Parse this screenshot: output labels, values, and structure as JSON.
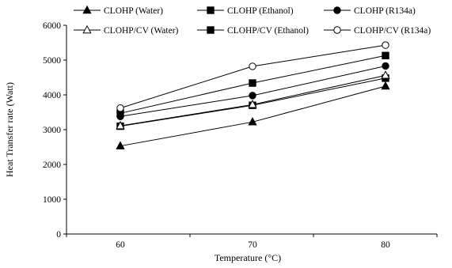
{
  "chart_data": {
    "type": "line",
    "title": "",
    "xlabel": "Temperature (°C)",
    "ylabel": "Heat Transfer rate (Watt)",
    "categories": [
      "60",
      "70",
      "80"
    ],
    "x": [
      60,
      70,
      80
    ],
    "ylim": [
      0,
      6000
    ],
    "yticks": [
      "0",
      "1000",
      "2000",
      "3000",
      "4000",
      "5000",
      "6000"
    ],
    "grid": false,
    "legend_position": "top",
    "series": [
      {
        "name": "CLOHP (Water)",
        "marker": "filled-triangle",
        "values": [
          2530,
          3220,
          4250
        ]
      },
      {
        "name": "CLOHP (Ethanol)",
        "marker": "filled-square",
        "values": [
          3100,
          3700,
          4480
        ]
      },
      {
        "name": "CLOHP (R134a)",
        "marker": "filled-circle",
        "values": [
          3380,
          3980,
          4830
        ]
      },
      {
        "name": "CLOHP/CV (Water)",
        "marker": "open-triangle",
        "values": [
          3110,
          3720,
          4560
        ]
      },
      {
        "name": "CLOHP/CV (Ethanol)",
        "marker": "filled-square",
        "values": [
          3470,
          4340,
          5130
        ]
      },
      {
        "name": "CLOHP/CV (R134a)",
        "marker": "open-circle",
        "values": [
          3620,
          4820,
          5430
        ]
      }
    ]
  }
}
